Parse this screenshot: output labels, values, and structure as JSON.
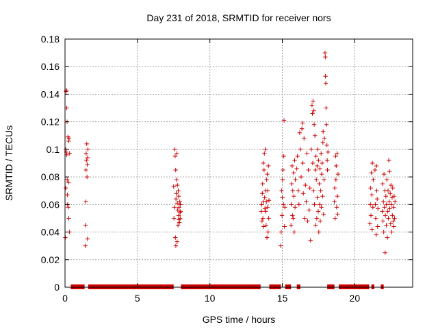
{
  "chart_data": {
    "type": "scatter",
    "title": "Day 231 of 2018, SRMTID for receiver nors",
    "xlabel": "GPS time / hours",
    "ylabel": "SRMTID / TECUs",
    "xlim": [
      0,
      24
    ],
    "ylim": [
      0,
      0.18
    ],
    "xticks": [
      0,
      5,
      10,
      15,
      20
    ],
    "yticks": [
      0,
      0.02,
      0.04,
      0.06,
      0.08,
      0.1,
      0.12,
      0.14,
      0.16,
      0.18
    ],
    "ytick_labels": [
      "0",
      "0.02",
      "0.04",
      "0.06",
      "0.08",
      "0.1",
      "0.12",
      "0.14",
      "0.16",
      "0.18"
    ],
    "grid": true,
    "marker": "+",
    "color": "#cc0000",
    "series": [
      {
        "name": "SRMTID",
        "points": [
          [
            0.02,
            0.036
          ],
          [
            0.05,
            0.072
          ],
          [
            0.06,
            0.1
          ],
          [
            0.07,
            0.142
          ],
          [
            0.08,
            0.098
          ],
          [
            0.1,
            0.143
          ],
          [
            0.12,
            0.096
          ],
          [
            0.12,
            0.13
          ],
          [
            0.14,
            0.12
          ],
          [
            0.15,
            0.078
          ],
          [
            0.16,
            0.067
          ],
          [
            0.18,
            0.06
          ],
          [
            0.2,
            0.109
          ],
          [
            0.22,
            0.058
          ],
          [
            0.24,
            0.076
          ],
          [
            0.25,
            0.106
          ],
          [
            0.26,
            0.05
          ],
          [
            0.28,
            0.108
          ],
          [
            0.3,
            0.04
          ],
          [
            0.32,
            0.097
          ],
          [
            1.4,
            0.03
          ],
          [
            1.42,
            0.045
          ],
          [
            1.44,
            0.062
          ],
          [
            1.45,
            0.085
          ],
          [
            1.46,
            0.097
          ],
          [
            1.48,
            0.092
          ],
          [
            1.5,
            0.104
          ],
          [
            1.52,
            0.08
          ],
          [
            1.54,
            0.089
          ],
          [
            1.55,
            0.035
          ],
          [
            1.56,
            0.094
          ],
          [
            1.58,
            0.1
          ],
          [
            7.5,
            0.073
          ],
          [
            7.52,
            0.05
          ],
          [
            7.55,
            0.058
          ],
          [
            7.58,
            0.1
          ],
          [
            7.6,
            0.095
          ],
          [
            7.62,
            0.036
          ],
          [
            7.64,
            0.085
          ],
          [
            7.65,
            0.03
          ],
          [
            7.66,
            0.064
          ],
          [
            7.68,
            0.068
          ],
          [
            7.7,
            0.078
          ],
          [
            7.72,
            0.097
          ],
          [
            7.74,
            0.033
          ],
          [
            7.75,
            0.061
          ],
          [
            7.76,
            0.074
          ],
          [
            7.78,
            0.056
          ],
          [
            7.8,
            0.045
          ],
          [
            7.82,
            0.07
          ],
          [
            7.84,
            0.052
          ],
          [
            7.85,
            0.066
          ],
          [
            7.86,
            0.049
          ],
          [
            7.88,
            0.058
          ],
          [
            7.9,
            0.047
          ],
          [
            7.92,
            0.062
          ],
          [
            7.94,
            0.054
          ],
          [
            7.95,
            0.05
          ],
          [
            7.96,
            0.06
          ],
          [
            7.98,
            0.055
          ],
          [
            13.55,
            0.055
          ],
          [
            13.58,
            0.06
          ],
          [
            13.6,
            0.048
          ],
          [
            13.62,
            0.068
          ],
          [
            13.64,
            0.075
          ],
          [
            13.66,
            0.05
          ],
          [
            13.68,
            0.09
          ],
          [
            13.7,
            0.062
          ],
          [
            13.72,
            0.044
          ],
          [
            13.74,
            0.085
          ],
          [
            13.76,
            0.097
          ],
          [
            13.78,
            0.065
          ],
          [
            13.8,
            0.057
          ],
          [
            13.82,
            0.1
          ],
          [
            13.84,
            0.07
          ],
          [
            13.86,
            0.055
          ],
          [
            13.88,
            0.045
          ],
          [
            13.9,
            0.062
          ],
          [
            13.92,
            0.078
          ],
          [
            13.94,
            0.036
          ],
          [
            13.96,
            0.082
          ],
          [
            13.98,
            0.058
          ],
          [
            14.0,
            0.07
          ],
          [
            14.02,
            0.04
          ],
          [
            14.04,
            0.088
          ],
          [
            14.06,
            0.05
          ],
          [
            14.08,
            0.063
          ],
          [
            14.9,
            0.03
          ],
          [
            14.92,
            0.04
          ],
          [
            14.95,
            0.07
          ],
          [
            14.98,
            0.052
          ],
          [
            15.0,
            0.065
          ],
          [
            15.02,
            0.078
          ],
          [
            15.05,
            0.085
          ],
          [
            15.08,
            0.06
          ],
          [
            15.1,
            0.095
          ],
          [
            15.12,
            0.121
          ],
          [
            15.15,
            0.044
          ],
          [
            15.18,
            0.058
          ],
          [
            15.6,
            0.045
          ],
          [
            15.62,
            0.06
          ],
          [
            15.65,
            0.075
          ],
          [
            15.68,
            0.088
          ],
          [
            15.7,
            0.052
          ],
          [
            15.72,
            0.07
          ],
          [
            15.75,
            0.05
          ],
          [
            15.78,
            0.083
          ],
          [
            15.8,
            0.066
          ],
          [
            15.82,
            0.04
          ],
          [
            15.85,
            0.092
          ],
          [
            15.88,
            0.058
          ],
          [
            15.9,
            0.078
          ],
          [
            16.0,
            0.086
          ],
          [
            16.05,
            0.095
          ],
          [
            16.1,
            0.07
          ],
          [
            16.15,
            0.06
          ],
          [
            16.2,
            0.112
          ],
          [
            16.25,
            0.1
          ],
          [
            16.3,
            0.08
          ],
          [
            16.35,
            0.115
          ],
          [
            16.4,
            0.119
          ],
          [
            16.42,
            0.09
          ],
          [
            16.45,
            0.068
          ],
          [
            16.5,
            0.108
          ],
          [
            16.55,
            0.05
          ],
          [
            16.6,
            0.074
          ],
          [
            16.65,
            0.062
          ],
          [
            16.7,
            0.097
          ],
          [
            16.75,
            0.048
          ],
          [
            16.8,
            0.085
          ],
          [
            16.85,
            0.056
          ],
          [
            16.9,
            0.072
          ],
          [
            16.95,
            0.034
          ],
          [
            17.0,
            0.1
          ],
          [
            17.05,
            0.132
          ],
          [
            17.08,
            0.126
          ],
          [
            17.1,
            0.09
          ],
          [
            17.12,
            0.135
          ],
          [
            17.15,
            0.07
          ],
          [
            17.18,
            0.128
          ],
          [
            17.2,
            0.118
          ],
          [
            17.22,
            0.06
          ],
          [
            17.25,
            0.11
          ],
          [
            17.28,
            0.085
          ],
          [
            17.3,
            0.045
          ],
          [
            17.32,
            0.095
          ],
          [
            17.35,
            0.078
          ],
          [
            17.38,
            0.05
          ],
          [
            17.4,
            0.088
          ],
          [
            17.42,
            0.065
          ],
          [
            17.45,
            0.1
          ],
          [
            17.48,
            0.055
          ],
          [
            17.5,
            0.092
          ],
          [
            17.52,
            0.04
          ],
          [
            17.55,
            0.075
          ],
          [
            17.58,
            0.06
          ],
          [
            17.6,
            0.086
          ],
          [
            17.62,
            0.048
          ],
          [
            17.65,
            0.07
          ],
          [
            17.68,
            0.097
          ],
          [
            17.7,
            0.058
          ],
          [
            17.72,
            0.082
          ],
          [
            17.75,
            0.09
          ],
          [
            17.78,
            0.066
          ],
          [
            17.8,
            0.105
          ],
          [
            17.82,
            0.113
          ],
          [
            17.85,
            0.053
          ],
          [
            17.88,
            0.078
          ],
          [
            17.9,
            0.108
          ],
          [
            17.95,
            0.17
          ],
          [
            17.97,
            0.167
          ],
          [
            17.98,
            0.153
          ],
          [
            18.0,
            0.148
          ],
          [
            18.02,
            0.13
          ],
          [
            18.05,
            0.118
          ],
          [
            18.08,
            0.103
          ],
          [
            18.1,
            0.092
          ],
          [
            18.12,
            0.085
          ],
          [
            18.15,
            0.098
          ],
          [
            18.6,
            0.062
          ],
          [
            18.62,
            0.072
          ],
          [
            18.65,
            0.05
          ],
          [
            18.68,
            0.095
          ],
          [
            18.7,
            0.078
          ],
          [
            18.72,
            0.088
          ],
          [
            18.75,
            0.058
          ],
          [
            18.78,
            0.097
          ],
          [
            18.8,
            0.066
          ],
          [
            18.82,
            0.053
          ],
          [
            18.85,
            0.082
          ],
          [
            21.05,
            0.046
          ],
          [
            21.08,
            0.06
          ],
          [
            21.1,
            0.072
          ],
          [
            21.12,
            0.052
          ],
          [
            21.15,
            0.083
          ],
          [
            21.18,
            0.067
          ],
          [
            21.2,
            0.042
          ],
          [
            21.22,
            0.09
          ],
          [
            21.25,
            0.058
          ],
          [
            21.28,
            0.078
          ],
          [
            21.4,
            0.085
          ],
          [
            21.42,
            0.06
          ],
          [
            21.45,
            0.05
          ],
          [
            21.48,
            0.038
          ],
          [
            21.5,
            0.088
          ],
          [
            21.52,
            0.07
          ],
          [
            21.55,
            0.064
          ],
          [
            21.58,
            0.044
          ],
          [
            21.6,
            0.057
          ],
          [
            21.9,
            0.055
          ],
          [
            21.92,
            0.075
          ],
          [
            21.95,
            0.048
          ],
          [
            21.98,
            0.062
          ],
          [
            22.0,
            0.04
          ],
          [
            22.02,
            0.082
          ],
          [
            22.05,
            0.058
          ],
          [
            22.08,
            0.07
          ],
          [
            22.1,
            0.025
          ],
          [
            22.12,
            0.052
          ],
          [
            22.15,
            0.066
          ],
          [
            22.18,
            0.045
          ],
          [
            22.2,
            0.06
          ],
          [
            22.22,
            0.078
          ],
          [
            22.25,
            0.036
          ],
          [
            22.28,
            0.055
          ],
          [
            22.3,
            0.07
          ],
          [
            22.32,
            0.05
          ],
          [
            22.35,
            0.092
          ],
          [
            22.38,
            0.062
          ],
          [
            22.4,
            0.084
          ],
          [
            22.42,
            0.057
          ],
          [
            22.45,
            0.068
          ],
          [
            22.48,
            0.046
          ],
          [
            22.5,
            0.074
          ],
          [
            22.52,
            0.06
          ],
          [
            22.55,
            0.04
          ],
          [
            22.58,
            0.065
          ],
          [
            22.6,
            0.052
          ],
          [
            22.62,
            0.072
          ],
          [
            22.65,
            0.048
          ],
          [
            22.68,
            0.058
          ],
          [
            22.7,
            0.044
          ],
          [
            22.72,
            0.066
          ],
          [
            22.75,
            0.05
          ],
          [
            22.78,
            0.062
          ]
        ]
      }
    ],
    "zero_bands": [
      [
        0.4,
        1.35
      ],
      [
        1.6,
        7.5
      ],
      [
        8.0,
        13.5
      ],
      [
        14.1,
        14.9
      ],
      [
        15.2,
        15.6
      ],
      [
        16.0,
        16.25
      ],
      [
        18.1,
        18.6
      ],
      [
        18.9,
        21.0
      ],
      [
        21.15,
        21.35
      ],
      [
        21.8,
        22.0
      ]
    ]
  }
}
